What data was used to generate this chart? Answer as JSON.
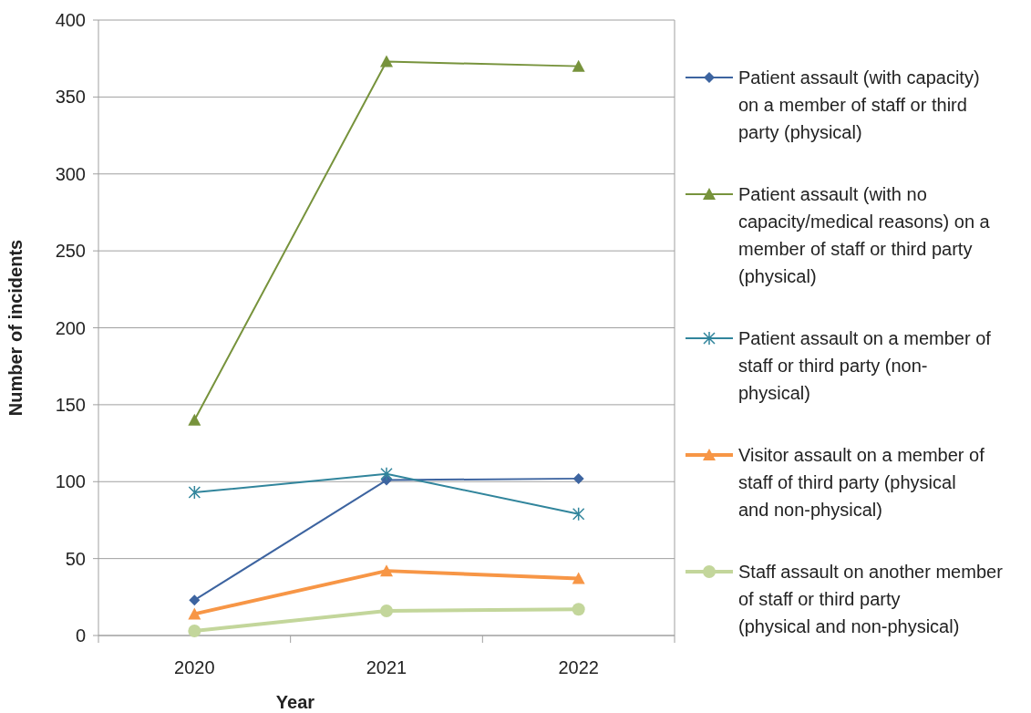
{
  "chart_data": {
    "type": "line",
    "xlabel": "Year",
    "ylabel": "Number of incidents",
    "categories": [
      "2020",
      "2021",
      "2022"
    ],
    "series": [
      {
        "name": "Patient assault (with capacity) on a member of staff or third party (physical)",
        "color": "#3d64a0",
        "marker": "diamond",
        "values": [
          23,
          101,
          102
        ]
      },
      {
        "name": "Patient assault (with no capacity/medical reasons) on a member of staff or third party (physical)",
        "color": "#77933c",
        "marker": "triangle",
        "values": [
          140,
          373,
          370
        ]
      },
      {
        "name": "Patient assault on a member of staff or third party (non-physical)",
        "color": "#31859c",
        "marker": "cross",
        "values": [
          93,
          105,
          79
        ]
      },
      {
        "name": "Visitor assault on a member of staff of third party (physical and non-physical)",
        "color": "#f79646",
        "marker": "triangle",
        "values": [
          14,
          42,
          37
        ]
      },
      {
        "name": "Staff assault on another member of staff or third party (physical and non-physical)",
        "color": "#c3d69b",
        "marker": "circle",
        "values": [
          3,
          16,
          17
        ]
      }
    ],
    "ylim": [
      0,
      400
    ],
    "yticks": [
      0,
      50,
      100,
      150,
      200,
      250,
      300,
      350,
      400
    ],
    "grid": "y",
    "legend": "right"
  }
}
